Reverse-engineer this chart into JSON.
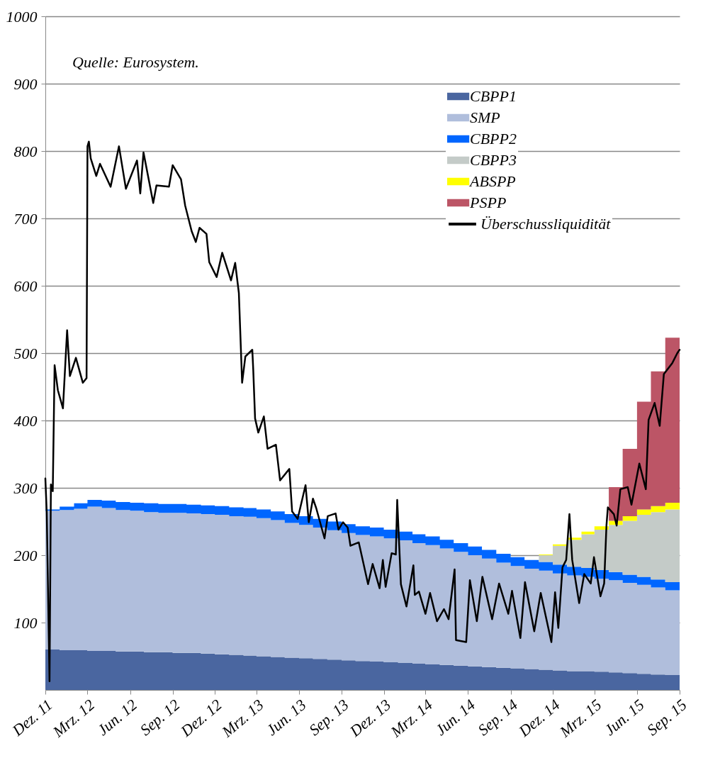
{
  "chart_data": {
    "type": "area",
    "stacked": true,
    "annotations": [
      "Quelle: Eurosystem."
    ],
    "x": [
      "2011-12",
      "2012-01",
      "2012-02",
      "2012-03",
      "2012-04",
      "2012-05",
      "2012-06",
      "2012-07",
      "2012-08",
      "2012-09",
      "2012-10",
      "2012-11",
      "2012-12",
      "2013-01",
      "2013-02",
      "2013-03",
      "2013-04",
      "2013-05",
      "2013-06",
      "2013-07",
      "2013-08",
      "2013-09",
      "2013-10",
      "2013-11",
      "2013-12",
      "2014-01",
      "2014-02",
      "2014-03",
      "2014-04",
      "2014-05",
      "2014-06",
      "2014-07",
      "2014-08",
      "2014-09",
      "2014-10",
      "2014-11",
      "2014-12",
      "2015-01",
      "2015-02",
      "2015-03",
      "2015-04",
      "2015-05",
      "2015-06",
      "2015-07",
      "2015-08",
      "2015-09"
    ],
    "xlim": [
      "2011-12",
      "2015-09"
    ],
    "xticks": [
      {
        "value": "2011-12",
        "label": "Dez. 11"
      },
      {
        "value": "2012-03",
        "label": "Mrz. 12"
      },
      {
        "value": "2012-06",
        "label": "Jun. 12"
      },
      {
        "value": "2012-09",
        "label": "Sep. 12"
      },
      {
        "value": "2012-12",
        "label": "Dez. 12"
      },
      {
        "value": "2013-03",
        "label": "Mrz. 13"
      },
      {
        "value": "2013-06",
        "label": "Jun. 13"
      },
      {
        "value": "2013-09",
        "label": "Sep. 13"
      },
      {
        "value": "2013-12",
        "label": "Dez. 13"
      },
      {
        "value": "2014-03",
        "label": "Mrz. 14"
      },
      {
        "value": "2014-06",
        "label": "Jun. 14"
      },
      {
        "value": "2014-09",
        "label": "Sep. 14"
      },
      {
        "value": "2014-12",
        "label": "Dez. 14"
      },
      {
        "value": "2015-03",
        "label": "Mrz. 15"
      },
      {
        "value": "2015-06",
        "label": "Jun. 15"
      },
      {
        "value": "2015-09",
        "label": "Sep. 15"
      }
    ],
    "ylim": [
      0,
      1000
    ],
    "yticks": [
      100,
      200,
      300,
      400,
      500,
      600,
      700,
      800,
      900,
      {
        "value": 1000,
        "label": "1000"
      }
    ],
    "grid": "y",
    "legend": "top right",
    "series": [
      {
        "name": "CBPP1",
        "color": "#4a66a0",
        "values": [
          60,
          59,
          59,
          58,
          58,
          57,
          57,
          56,
          56,
          55,
          55,
          54,
          53,
          52,
          51,
          50,
          49,
          48,
          47,
          46,
          45,
          44,
          43,
          42,
          41,
          40,
          39,
          38,
          37,
          36,
          35,
          34,
          33,
          32,
          31,
          30,
          29,
          28,
          28,
          27,
          26,
          25,
          24,
          23,
          22,
          22
        ]
      },
      {
        "name": "SMP",
        "color": "#b0bedc",
        "values": [
          206,
          208,
          210,
          214,
          212,
          210,
          209,
          208,
          207,
          208,
          207,
          207,
          207,
          206,
          206,
          205,
          203,
          200,
          198,
          195,
          192,
          189,
          187,
          186,
          184,
          182,
          179,
          177,
          173,
          169,
          165,
          161,
          156,
          152,
          149,
          147,
          144,
          142,
          140,
          138,
          137,
          134,
          132,
          129,
          126,
          123
        ]
      },
      {
        "name": "CBPP2",
        "color": "#0066ff",
        "values": [
          2,
          5,
          8,
          10,
          11,
          12,
          12,
          13,
          13,
          13,
          13,
          13,
          13,
          13,
          13,
          13,
          13,
          13,
          13,
          13,
          13,
          13,
          13,
          13,
          13,
          13,
          13,
          13,
          13,
          13,
          13,
          13,
          13,
          13,
          13,
          13,
          13,
          13,
          13,
          13,
          12,
          12,
          12,
          12,
          12,
          12
        ]
      },
      {
        "name": "CBPP3",
        "color": "#c4cbc8",
        "values": [
          0,
          0,
          0,
          0,
          0,
          0,
          0,
          0,
          0,
          0,
          0,
          0,
          0,
          0,
          0,
          0,
          0,
          0,
          0,
          0,
          0,
          0,
          0,
          0,
          0,
          0,
          0,
          0,
          0,
          0,
          0,
          0,
          0,
          0,
          0,
          10,
          28,
          40,
          50,
          60,
          70,
          80,
          92,
          100,
          108,
          116
        ]
      },
      {
        "name": "ABSPP",
        "color": "#ffff00",
        "values": [
          0,
          0,
          0,
          0,
          0,
          0,
          0,
          0,
          0,
          0,
          0,
          0,
          0,
          0,
          0,
          0,
          0,
          0,
          0,
          0,
          0,
          0,
          0,
          0,
          0,
          0,
          0,
          0,
          0,
          0,
          0,
          0,
          0,
          0,
          0,
          1,
          2,
          3,
          4,
          5,
          6,
          7,
          8,
          9,
          10,
          10
        ]
      },
      {
        "name": "PSPP",
        "color": "#bc5566",
        "values": [
          0,
          0,
          0,
          0,
          0,
          0,
          0,
          0,
          0,
          0,
          0,
          0,
          0,
          0,
          0,
          0,
          0,
          0,
          0,
          0,
          0,
          0,
          0,
          0,
          0,
          0,
          0,
          0,
          0,
          0,
          0,
          0,
          0,
          0,
          0,
          0,
          0,
          0,
          0,
          0,
          50,
          100,
          160,
          200,
          245,
          290
        ]
      },
      {
        "name": "Überschussliquidität",
        "type": "line",
        "color": "#000000",
        "line_style": "solid",
        "x": [
          "2011-12-01",
          "2011-12-04",
          "2011-12-10",
          "2011-12-13",
          "2011-12-17",
          "2011-12-21",
          "2011-12-28",
          "2012-01-08",
          "2012-01-17",
          "2012-01-23",
          "2012-02-05",
          "2012-02-20",
          "2012-02-28",
          "2012-03-01",
          "2012-03-04",
          "2012-03-08",
          "2012-03-20",
          "2012-03-28",
          "2012-04-20",
          "2012-05-08",
          "2012-05-23",
          "2012-06-16",
          "2012-06-23",
          "2012-06-30",
          "2012-07-21",
          "2012-07-28",
          "2012-08-24",
          "2012-09-01",
          "2012-09-19",
          "2012-09-28",
          "2012-10-12",
          "2012-10-21",
          "2012-10-29",
          "2012-11-13",
          "2012-11-19",
          "2012-12-05",
          "2012-12-17",
          "2013-01-05",
          "2013-01-14",
          "2013-01-22",
          "2013-01-29",
          "2013-02-05",
          "2013-02-20",
          "2013-02-22",
          "2013-02-26",
          "2013-03-05",
          "2013-03-17",
          "2013-03-25",
          "2013-04-12",
          "2013-04-21",
          "2013-05-11",
          "2013-05-17",
          "2013-05-29",
          "2013-06-15",
          "2013-06-22",
          "2013-07-01",
          "2013-07-08",
          "2013-07-26",
          "2013-08-02",
          "2013-08-19",
          "2013-08-25",
          "2013-09-04",
          "2013-09-14",
          "2013-09-20",
          "2013-10-08",
          "2013-10-28",
          "2013-11-07",
          "2013-11-22",
          "2013-11-29",
          "2013-12-05",
          "2013-12-18",
          "2013-12-27",
          "2013-12-30",
          "2014-01-07",
          "2014-01-19",
          "2014-02-03",
          "2014-02-06",
          "2014-02-15",
          "2014-03-01",
          "2014-03-11",
          "2014-03-26",
          "2014-04-10",
          "2014-04-20",
          "2014-05-03",
          "2014-05-06",
          "2014-05-28",
          "2014-06-05",
          "2014-06-20",
          "2014-07-02",
          "2014-07-23",
          "2014-08-07",
          "2014-08-27",
          "2014-09-04",
          "2014-09-22",
          "2014-10-02",
          "2014-10-22",
          "2014-11-05",
          "2014-11-28",
          "2014-12-06",
          "2014-12-13",
          "2014-12-22",
          "2014-12-30",
          "2015-01-06",
          "2015-01-12",
          "2015-01-27",
          "2015-02-07",
          "2015-02-21",
          "2015-02-28",
          "2015-03-14",
          "2015-03-22",
          "2015-03-27",
          "2015-03-30",
          "2015-04-12",
          "2015-04-18",
          "2015-04-26",
          "2015-05-12",
          "2015-05-20",
          "2015-06-06",
          "2015-06-20",
          "2015-06-26",
          "2015-07-09",
          "2015-07-20",
          "2015-07-29",
          "2015-08-16",
          "2015-08-27",
          "2015-09-01"
        ],
        "values": [
          314,
          263,
          13,
          305,
          295,
          482,
          445,
          418,
          534,
          466,
          493,
          456,
          463,
          807,
          814,
          789,
          763,
          781,
          747,
          807,
          744,
          786,
          737,
          798,
          723,
          749,
          747,
          779,
          758,
          719,
          681,
          665,
          686,
          677,
          635,
          613,
          649,
          608,
          634,
          589,
          456,
          495,
          505,
          476,
          403,
          382,
          406,
          358,
          364,
          311,
          328,
          265,
          254,
          304,
          249,
          284,
          270,
          225,
          258,
          262,
          238,
          249,
          241,
          214,
          219,
          157,
          187,
          151,
          193,
          153,
          203,
          201,
          282,
          157,
          124,
          185,
          141,
          146,
          113,
          144,
          102,
          120,
          105,
          179,
          74,
          71,
          163,
          102,
          168,
          105,
          158,
          113,
          147,
          77,
          160,
          87,
          144,
          71,
          145,
          92,
          182,
          193,
          261,
          193,
          129,
          172,
          158,
          197,
          139,
          158,
          244,
          271,
          261,
          244,
          298,
          301,
          275,
          336,
          298,
          401,
          426,
          392,
          469,
          485,
          500,
          505
        ]
      }
    ]
  }
}
